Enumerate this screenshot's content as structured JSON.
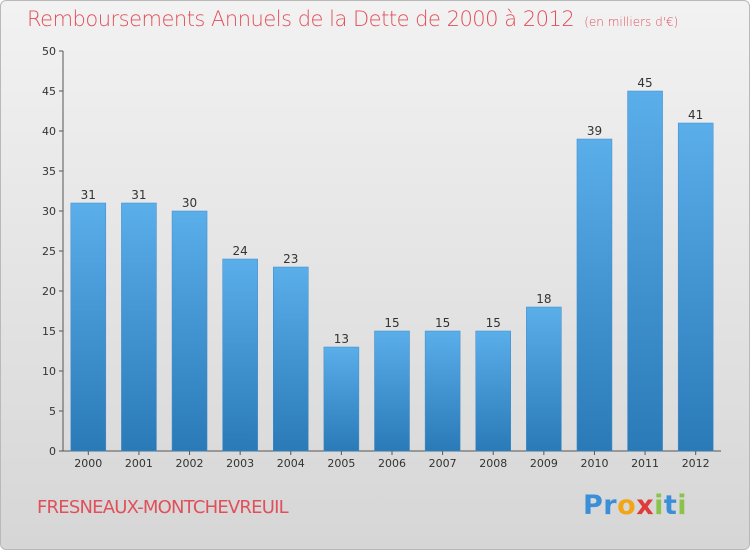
{
  "title": "Remboursements Annuels de la Dette de 2000 à 2012",
  "subtitle": "(en milliers d'€)",
  "commune": "FRESNEAUX-MONTCHEVREUIL",
  "logo": {
    "letters": [
      "P",
      "r",
      "o",
      "x",
      "i",
      "t",
      "i"
    ],
    "colors": [
      "#3a8fd8",
      "#3a8fd8",
      "#f2a516",
      "#e03a3a",
      "#8bc34a",
      "#3a8fd8",
      "#8bc34a"
    ]
  },
  "colors": {
    "bar_light": "#5aaeea",
    "bar_dark": "#2a7ab8",
    "title": "#e0505a"
  },
  "chart_data": {
    "type": "bar",
    "title": "Remboursements Annuels de la Dette de 2000 à 2012",
    "subtitle": "(en milliers d'€)",
    "xlabel": "",
    "ylabel": "",
    "categories": [
      "2000",
      "2001",
      "2002",
      "2003",
      "2004",
      "2005",
      "2006",
      "2007",
      "2008",
      "2009",
      "2010",
      "2011",
      "2012"
    ],
    "values": [
      31,
      31,
      30,
      24,
      23,
      13,
      15,
      15,
      15,
      18,
      39,
      45,
      41
    ],
    "ylim": [
      0,
      50
    ],
    "yticks": [
      0,
      5,
      10,
      15,
      20,
      25,
      30,
      35,
      40,
      45,
      50
    ],
    "grid": false,
    "data_labels": true
  }
}
